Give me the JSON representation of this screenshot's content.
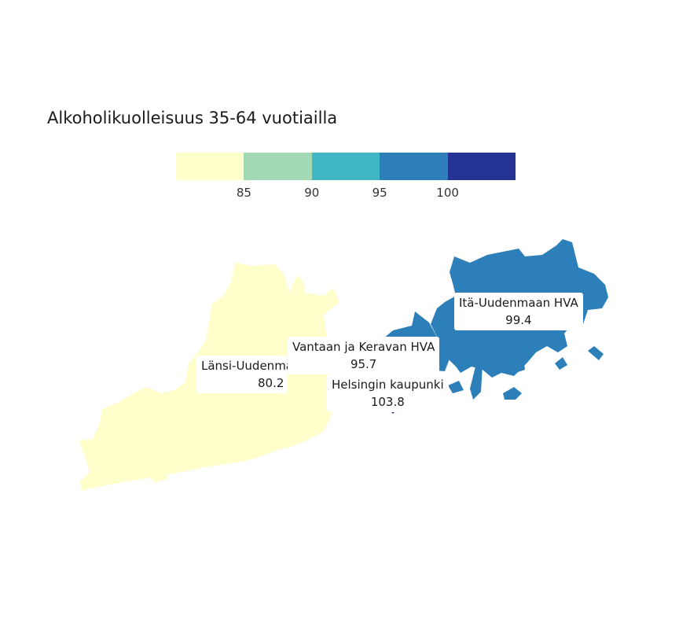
{
  "title": "Alkoholikuolleisuus 35-64 vuotiailla",
  "colors": {
    "scale": [
      "#ffffcc",
      "#a1dab4",
      "#41b6c4",
      "#2c7fb8",
      "#253494"
    ],
    "itä": "#2c7fb8",
    "länsi": "#ffffcc",
    "vantaa": "#2c7fb8",
    "helsinki": "#253494"
  },
  "legend": {
    "ticks": [
      "85",
      "90",
      "95",
      "100"
    ]
  },
  "regions": [
    {
      "name": "Itä-Uudenmaan HVA",
      "value": "99.4"
    },
    {
      "name": "Vantaan ja Keravan HVA",
      "value": "95.7"
    },
    {
      "name": "Länsi-Uudenmaan HVA",
      "name_visible": "Länsi-Uudenma",
      "value": "80.2"
    },
    {
      "name": "Helsingin kaupunki",
      "value": "103.8"
    }
  ]
}
